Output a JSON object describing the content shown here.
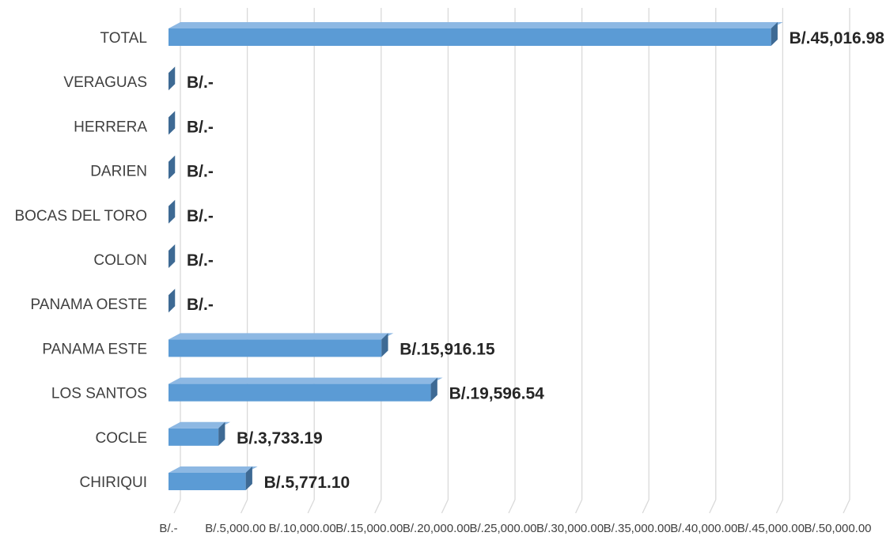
{
  "chart_data": {
    "type": "bar",
    "orientation": "horizontal",
    "style": "3d",
    "categories": [
      "TOTAL",
      "VERAGUAS",
      "HERRERA",
      "DARIEN",
      "BOCAS DEL TORO",
      "COLON",
      "PANAMA OESTE",
      "PANAMA ESTE",
      "LOS SANTOS",
      "COCLE",
      "CHIRIQUI"
    ],
    "values": [
      45016.98,
      0,
      0,
      0,
      0,
      0,
      0,
      15916.15,
      19596.54,
      3733.19,
      5771.1
    ],
    "data_labels": [
      "B/.45,016.98",
      "B/.-",
      "B/.-",
      "B/.-",
      "B/.-",
      "B/.-",
      "B/.-",
      "B/.15,916.15",
      "B/.19,596.54",
      "B/.3,733.19",
      "B/.5,771.10"
    ],
    "xlim": [
      0,
      50000
    ],
    "x_ticks": [
      0,
      5000,
      10000,
      15000,
      20000,
      25000,
      30000,
      35000,
      40000,
      45000,
      50000
    ],
    "x_tick_labels": [
      "B/.-",
      "B/.5,000.00",
      "B/.10,000.00",
      "B/.15,000.00",
      "B/.20,000.00",
      "B/.25,000.00",
      "B/.30,000.00",
      "B/.35,000.00",
      "B/.40,000.00",
      "B/.45,000.00",
      "B/.50,000.00"
    ],
    "title": "",
    "xlabel": "",
    "ylabel": "",
    "grid": true,
    "legend": "none",
    "colors": {
      "bar_front": "#5B9BD5",
      "bar_top": "#8DB8E3",
      "bar_side": "#3E6A94",
      "gridline": "#D9D9D9",
      "text": "#404040",
      "data_label": "#262626"
    }
  }
}
